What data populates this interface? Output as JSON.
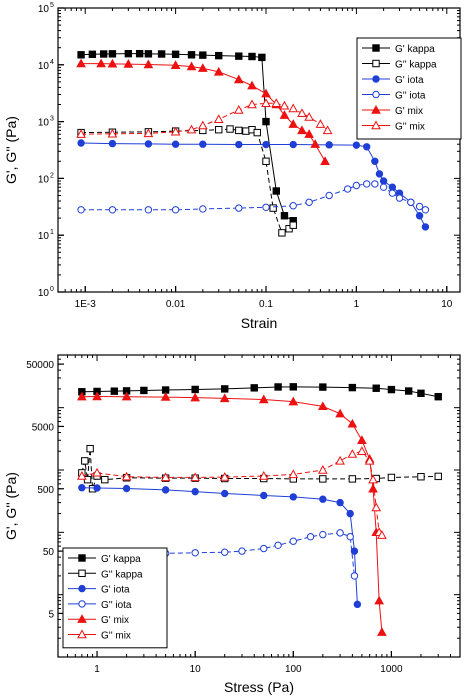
{
  "chart_data": [
    {
      "type": "scatter",
      "xscale": "log",
      "yscale": "log",
      "xlim": [
        0.0005,
        14
      ],
      "ylim": [
        1,
        100000
      ],
      "xlabel": "Strain",
      "ylabel": "G', G'' (Pa)",
      "x_ticks": [
        {
          "value": 0.001,
          "label": "1E-3"
        },
        {
          "value": 0.01,
          "label": "0.01"
        },
        {
          "value": 0.1,
          "label": "0.1"
        },
        {
          "value": 1,
          "label": "1"
        },
        {
          "value": 10,
          "label": "10"
        }
      ],
      "y_ticks": [
        {
          "value": 1,
          "label": "10",
          "exp": "0"
        },
        {
          "value": 10,
          "label": "10",
          "exp": "1"
        },
        {
          "value": 100,
          "label": "10",
          "exp": "2"
        },
        {
          "value": 1000,
          "label": "10",
          "exp": "3"
        },
        {
          "value": 10000,
          "label": "10",
          "exp": "4"
        },
        {
          "value": 100000,
          "label": "10",
          "exp": "5"
        }
      ],
      "grid": false,
      "legend_position": "top-right",
      "series": [
        {
          "name": "G' kappa",
          "color": "#000000",
          "marker": "square",
          "filled": true,
          "line": "solid",
          "x": [
            0.0009,
            0.0012,
            0.0016,
            0.002,
            0.003,
            0.004,
            0.005,
            0.007,
            0.01,
            0.015,
            0.02,
            0.03,
            0.05,
            0.07,
            0.09,
            0.1,
            0.13,
            0.16,
            0.2
          ],
          "y": [
            15000,
            15300,
            15500,
            15600,
            15700,
            15700,
            15600,
            15500,
            15300,
            15000,
            14800,
            14500,
            14200,
            14000,
            13500,
            1000,
            60,
            22,
            18
          ]
        },
        {
          "name": "G'' kappa",
          "color": "#000000",
          "marker": "square",
          "filled": false,
          "line": "solid",
          "x": [
            0.0009,
            0.002,
            0.005,
            0.01,
            0.02,
            0.03,
            0.04,
            0.05,
            0.06,
            0.07,
            0.08,
            0.1,
            0.12,
            0.15,
            0.18,
            0.2
          ],
          "y": [
            640,
            650,
            660,
            680,
            700,
            720,
            740,
            700,
            680,
            720,
            640,
            200,
            30,
            11,
            13,
            15
          ]
        },
        {
          "name": "G' iota",
          "color": "#1f3fd6",
          "marker": "circle",
          "filled": true,
          "line": "solid",
          "x": [
            0.0009,
            0.002,
            0.005,
            0.01,
            0.02,
            0.05,
            0.1,
            0.2,
            0.5,
            1,
            1.3,
            1.6,
            1.8,
            2,
            2.5,
            3,
            4,
            5,
            5.8
          ],
          "y": [
            420,
            410,
            405,
            400,
            400,
            395,
            395,
            395,
            390,
            385,
            360,
            200,
            120,
            90,
            70,
            55,
            38,
            22,
            14
          ]
        },
        {
          "name": "G'' iota",
          "color": "#1f3fd6",
          "marker": "circle",
          "filled": false,
          "line": "solid",
          "x": [
            0.0009,
            0.002,
            0.005,
            0.01,
            0.02,
            0.05,
            0.1,
            0.2,
            0.3,
            0.5,
            0.8,
            1,
            1.3,
            1.6,
            2,
            2.5,
            3,
            4,
            5,
            5.8
          ],
          "y": [
            28,
            28,
            28,
            28,
            29,
            30,
            31,
            33,
            38,
            50,
            65,
            75,
            80,
            80,
            70,
            55,
            45,
            38,
            32,
            28
          ]
        },
        {
          "name": "G' mix",
          "color": "#ee1111",
          "marker": "triangle",
          "filled": true,
          "line": "solid",
          "x": [
            0.0009,
            0.0015,
            0.002,
            0.003,
            0.005,
            0.01,
            0.015,
            0.02,
            0.03,
            0.05,
            0.07,
            0.1,
            0.13,
            0.16,
            0.2,
            0.25,
            0.3,
            0.35,
            0.45
          ],
          "y": [
            10500,
            10500,
            10400,
            10300,
            10100,
            9800,
            9300,
            8700,
            7500,
            5500,
            4300,
            3100,
            2000,
            1300,
            900,
            700,
            600,
            400,
            200
          ]
        },
        {
          "name": "G'' mix",
          "color": "#ee1111",
          "marker": "triangle",
          "filled": false,
          "line": "solid",
          "x": [
            0.0009,
            0.002,
            0.005,
            0.01,
            0.015,
            0.02,
            0.03,
            0.05,
            0.07,
            0.1,
            0.13,
            0.16,
            0.2,
            0.25,
            0.3,
            0.4,
            0.48
          ],
          "y": [
            600,
            610,
            620,
            660,
            720,
            850,
            1100,
            1600,
            2000,
            2100,
            2100,
            1900,
            1700,
            1400,
            1200,
            900,
            700
          ]
        }
      ]
    },
    {
      "type": "scatter",
      "xscale": "log",
      "yscale": "log",
      "xlim": [
        0.4,
        5000
      ],
      "ylim": [
        1,
        70000
      ],
      "xlabel": "Stress (Pa)",
      "ylabel": "G', G'' (Pa)",
      "x_ticks": [
        {
          "value": 1,
          "label": "1"
        },
        {
          "value": 10,
          "label": "10"
        },
        {
          "value": 100,
          "label": "100"
        },
        {
          "value": 1000,
          "label": "1000"
        }
      ],
      "y_ticks": [
        {
          "value": 5,
          "label": "5"
        },
        {
          "value": 50,
          "label": "50"
        },
        {
          "value": 500,
          "label": "500"
        },
        {
          "value": 5000,
          "label": "5000"
        },
        {
          "value": 50000,
          "label": "50000"
        }
      ],
      "grid": false,
      "legend_position": "bottom-left",
      "series": [
        {
          "name": "G' kappa",
          "color": "#000000",
          "marker": "square",
          "filled": true,
          "line": "solid",
          "x": [
            0.7,
            1,
            1.5,
            2,
            3,
            5,
            10,
            20,
            40,
            70,
            100,
            200,
            400,
            700,
            1000,
            1500,
            2000,
            3000
          ],
          "y": [
            18000,
            18200,
            18400,
            18600,
            18900,
            19200,
            19600,
            20000,
            20800,
            21500,
            21600,
            21400,
            21000,
            20500,
            19500,
            18500,
            17000,
            15000
          ]
        },
        {
          "name": "G'' kappa",
          "color": "#000000",
          "marker": "square",
          "filled": false,
          "line": "solid",
          "x": [
            0.7,
            0.75,
            0.8,
            0.85,
            0.9,
            1,
            1.2,
            2,
            5,
            10,
            20,
            50,
            100,
            200,
            400,
            700,
            1000,
            2000,
            3000
          ],
          "y": [
            900,
            1400,
            700,
            2200,
            500,
            800,
            700,
            750,
            740,
            740,
            730,
            730,
            720,
            720,
            720,
            730,
            760,
            780,
            790
          ]
        },
        {
          "name": "G' iota",
          "color": "#1f3fd6",
          "marker": "circle",
          "filled": true,
          "line": "solid",
          "x": [
            0.7,
            1,
            2,
            5,
            10,
            20,
            50,
            100,
            200,
            300,
            380,
            420,
            450
          ],
          "y": [
            520,
            515,
            505,
            480,
            450,
            420,
            390,
            370,
            340,
            300,
            200,
            50,
            7
          ]
        },
        {
          "name": "G'' iota",
          "color": "#1f3fd6",
          "marker": "circle",
          "filled": false,
          "line": "solid",
          "x": [
            0.7,
            1,
            2,
            5,
            10,
            20,
            30,
            50,
            70,
            100,
            150,
            200,
            300,
            380,
            420
          ],
          "y": [
            45,
            45,
            45,
            46,
            47,
            48,
            50,
            55,
            62,
            72,
            85,
            92,
            98,
            85,
            20
          ]
        },
        {
          "name": "G' mix",
          "color": "#ee1111",
          "marker": "triangle",
          "filled": true,
          "line": "solid",
          "x": [
            0.7,
            1,
            2,
            5,
            10,
            20,
            50,
            100,
            200,
            300,
            400,
            500,
            600,
            650,
            700,
            750,
            800
          ],
          "y": [
            15000,
            15100,
            15000,
            14800,
            14500,
            14100,
            13500,
            12500,
            10500,
            8000,
            5500,
            3000,
            1500,
            500,
            100,
            8,
            2.5
          ]
        },
        {
          "name": "G'' mix",
          "color": "#ee1111",
          "marker": "triangle",
          "filled": false,
          "line": "solid",
          "x": [
            0.7,
            1,
            2,
            5,
            10,
            20,
            50,
            100,
            200,
            300,
            400,
            500,
            600,
            650,
            700,
            750,
            800
          ],
          "y": [
            800,
            900,
            780,
            760,
            760,
            770,
            800,
            850,
            1000,
            1400,
            1800,
            2000,
            1400,
            700,
            250,
            100,
            90
          ]
        }
      ]
    }
  ]
}
